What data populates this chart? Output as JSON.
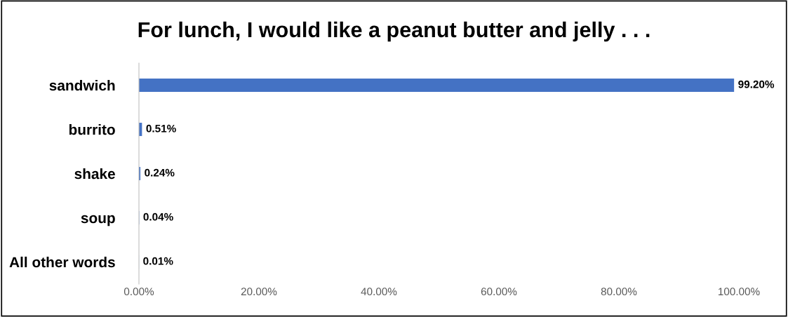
{
  "chart_data": {
    "type": "bar",
    "orientation": "horizontal",
    "title": "For lunch, I would like a peanut butter and jelly . . .",
    "categories": [
      "sandwich",
      "burrito",
      "shake",
      "soup",
      "All other words"
    ],
    "values": [
      99.2,
      0.51,
      0.24,
      0.04,
      0.01
    ],
    "value_labels": [
      "99.20%",
      "0.51%",
      "0.24%",
      "0.04%",
      "0.01%"
    ],
    "color": "#4472c4",
    "xlim": [
      0,
      100
    ],
    "xticks": [
      {
        "value": 0,
        "label": "0.00%"
      },
      {
        "value": 20,
        "label": "20.00%"
      },
      {
        "value": 40,
        "label": "40.00%"
      },
      {
        "value": 60,
        "label": "60.00%"
      },
      {
        "value": 80,
        "label": "80.00%"
      },
      {
        "value": 100,
        "label": "100.00%"
      }
    ],
    "grid": false,
    "legend": false
  }
}
